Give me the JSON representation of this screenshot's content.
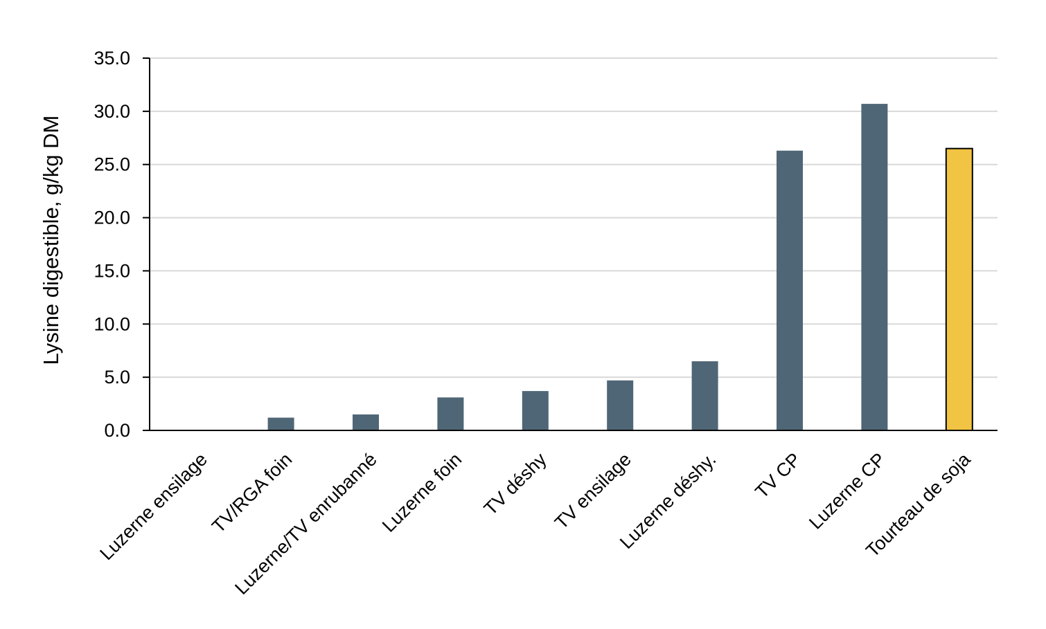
{
  "chart_data": {
    "type": "bar",
    "title": "",
    "xlabel": "",
    "ylabel": "Lysine digestible, g/kg DM",
    "ylim": [
      0,
      35
    ],
    "yticks": [
      "0.0",
      "5.0",
      "10.0",
      "15.0",
      "20.0",
      "25.0",
      "30.0",
      "35.0"
    ],
    "grid": true,
    "categories": [
      "Luzerne ensilage",
      "TV/RGA foin",
      "Luzerne/TV enrubanné",
      "Luzerne foin",
      "TV déshy",
      "TV ensilage",
      "Luzerne déshy.",
      "TV CP",
      "Luzerne CP",
      "Tourteau de soja"
    ],
    "values": [
      0.0,
      1.2,
      1.5,
      3.1,
      3.7,
      4.7,
      6.5,
      26.3,
      30.7,
      26.5
    ],
    "colors": {
      "default": "#4f6676",
      "highlight": "#f2c443",
      "highlight_stroke": "#000000"
    },
    "highlight_category": "Tourteau de soja"
  }
}
